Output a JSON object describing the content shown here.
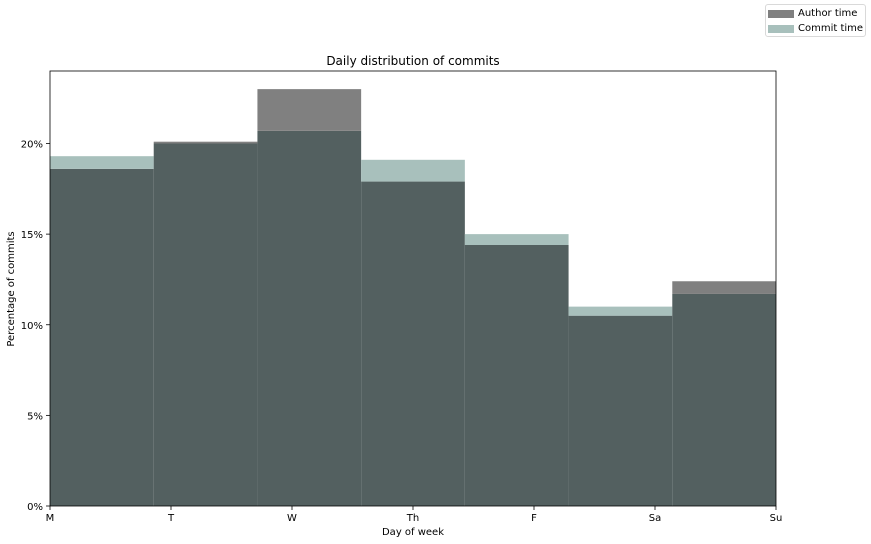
{
  "chart_data": {
    "type": "bar",
    "title": "Daily distribution of commits",
    "xlabel": "Day of week",
    "ylabel": "Percentage of commits",
    "categories": [
      "M",
      "T",
      "W",
      "Th",
      "F",
      "Sa",
      "Su"
    ],
    "x_tick_labels": [
      "M",
      "T",
      "W",
      "Th",
      "F",
      "Sa",
      "Su"
    ],
    "y_ticks": [
      0,
      5,
      10,
      15,
      20
    ],
    "y_tick_labels": [
      "0%",
      "5%",
      "10%",
      "15%",
      "20%"
    ],
    "ylim": [
      0,
      24
    ],
    "grid": false,
    "legend_position": "top-right",
    "series": [
      {
        "name": "Author time",
        "color": "#808080",
        "values": [
          18.6,
          20.1,
          23.0,
          17.9,
          14.4,
          10.5,
          12.4
        ]
      },
      {
        "name": "Commit time",
        "color": "#a8c0bc",
        "values": [
          19.3,
          20.0,
          20.7,
          19.1,
          15.0,
          11.0,
          11.7
        ]
      }
    ],
    "overlap_color": "#536060"
  }
}
